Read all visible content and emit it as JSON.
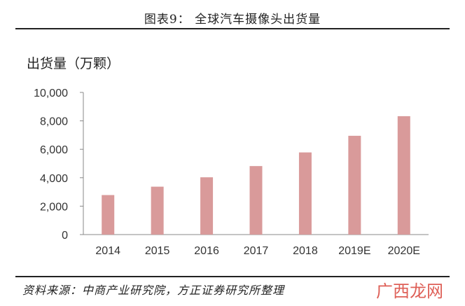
{
  "header": {
    "title": "图表9：   全球汽车摄像头出货量"
  },
  "footer": {
    "source": "资料来源：中商产业研究院，方正证券研究所整理",
    "watermark": "广西龙网"
  },
  "colors": {
    "bar": "#d99a9a",
    "axis": "#888888",
    "text": "#333333"
  },
  "chart_data": {
    "type": "bar",
    "title": "",
    "ylabel": "出货量（万颗）",
    "xlabel": "",
    "categories": [
      "2014",
      "2015",
      "2016",
      "2017",
      "2018",
      "2019E",
      "2020E"
    ],
    "values": [
      2780,
      3370,
      4030,
      4820,
      5780,
      6950,
      8330
    ],
    "ylim": [
      0,
      10000
    ],
    "yticks": [
      0,
      2000,
      4000,
      6000,
      8000,
      10000
    ],
    "ytick_labels": [
      "0",
      "2,000",
      "4,000",
      "6,000",
      "8,000",
      "10,000"
    ],
    "grid": false,
    "legend": "none"
  }
}
